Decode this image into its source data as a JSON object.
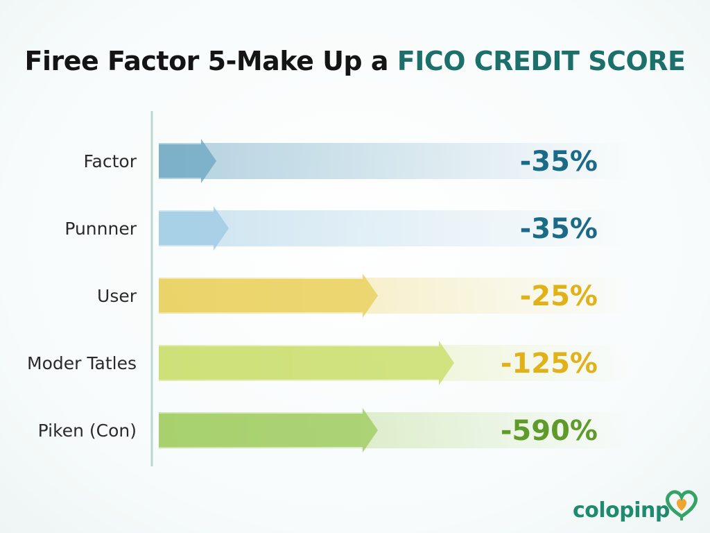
{
  "title": {
    "main": "Firee Factor 5-Make Up a ",
    "accent": "FICO CREDIT SCORE"
  },
  "chart_data": {
    "type": "bar",
    "orientation": "horizontal",
    "categories": [
      "Factor",
      "Punnner",
      "User",
      "Moder Tatles",
      "Piken (Con)"
    ],
    "value_labels": [
      "-35%",
      "-35%",
      "-25%",
      "-125%",
      "-590%"
    ],
    "values": [
      35,
      35,
      25,
      125,
      590
    ],
    "grid": false,
    "legend": "none",
    "colors": [
      "#6fa9c4",
      "#9fcbe3",
      "#e9cf5a",
      "#c9dd6a",
      "#9fcc5f"
    ],
    "label_colors": [
      "#1c6b86",
      "#1c6b86",
      "#e0b118",
      "#e0b118",
      "#5f9a2b"
    ]
  },
  "logo": {
    "text": "colopinp",
    "icon": "heart-leaf-icon"
  }
}
